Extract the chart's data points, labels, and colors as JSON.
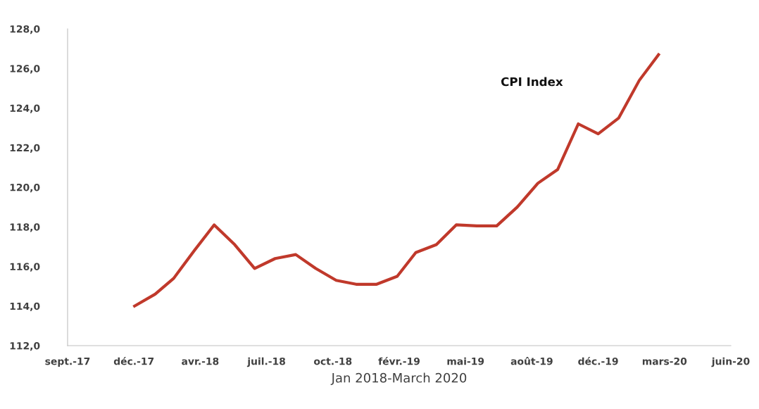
{
  "chart_data": {
    "type": "line",
    "xlabel": "Jan 2018-March 2020",
    "annotations": [
      "CPI Index"
    ],
    "x": [
      "2018-01-01",
      "2018-02-01",
      "2018-03-01",
      "2018-04-01",
      "2018-05-01",
      "2018-06-01",
      "2018-07-01",
      "2018-08-01",
      "2018-09-01",
      "2018-10-01",
      "2018-11-01",
      "2018-12-01",
      "2019-01-01",
      "2019-02-01",
      "2019-03-01",
      "2019-04-01",
      "2019-05-01",
      "2019-06-01",
      "2019-07-01",
      "2019-08-01",
      "2019-09-01",
      "2019-10-01",
      "2019-11-01",
      "2019-12-01",
      "2020-01-01",
      "2020-02-01",
      "2020-03-01"
    ],
    "series": [
      {
        "color": "#c0392b",
        "values": [
          114.0,
          114.6,
          115.4,
          116.8,
          118.1,
          117.1,
          115.9,
          116.4,
          116.6,
          115.9,
          115.3,
          115.1,
          115.1,
          115.5,
          116.7,
          117.1,
          118.1,
          118.05,
          118.05,
          119.0,
          120.2,
          120.9,
          123.2,
          122.7,
          123.5,
          125.4,
          126.7
        ]
      }
    ],
    "xlim": [
      "2017-09-22",
      "2020-06-18"
    ],
    "xticks": [
      {
        "value": "2017-09-22",
        "label": "sept.-17"
      },
      {
        "value": "2017-12-31",
        "label": "déc.-17"
      },
      {
        "value": "2018-04-10",
        "label": "avr.-18"
      },
      {
        "value": "2018-07-19",
        "label": "juil.-18"
      },
      {
        "value": "2018-10-27",
        "label": "oct.-18"
      },
      {
        "value": "2019-02-04",
        "label": "févr.-19"
      },
      {
        "value": "2019-05-15",
        "label": "mai-19"
      },
      {
        "value": "2019-08-23",
        "label": "août-19"
      },
      {
        "value": "2019-12-01",
        "label": "déc.-19"
      },
      {
        "value": "2020-03-10",
        "label": "mars-20"
      },
      {
        "value": "2020-06-18",
        "label": "juin-20"
      }
    ],
    "ylim": [
      112,
      128
    ],
    "yticks": [
      {
        "value": 112,
        "label": "112,0"
      },
      {
        "value": 114,
        "label": "114,0"
      },
      {
        "value": 116,
        "label": "116,0"
      },
      {
        "value": 118,
        "label": "118,0"
      },
      {
        "value": 120,
        "label": "120,0"
      },
      {
        "value": 122,
        "label": "122,0"
      },
      {
        "value": 124,
        "label": "124,0"
      },
      {
        "value": 126,
        "label": "126,0"
      },
      {
        "value": 128,
        "label": "128,0"
      }
    ],
    "grid": false,
    "legend": false,
    "marker": "none",
    "line_style": "solid"
  }
}
